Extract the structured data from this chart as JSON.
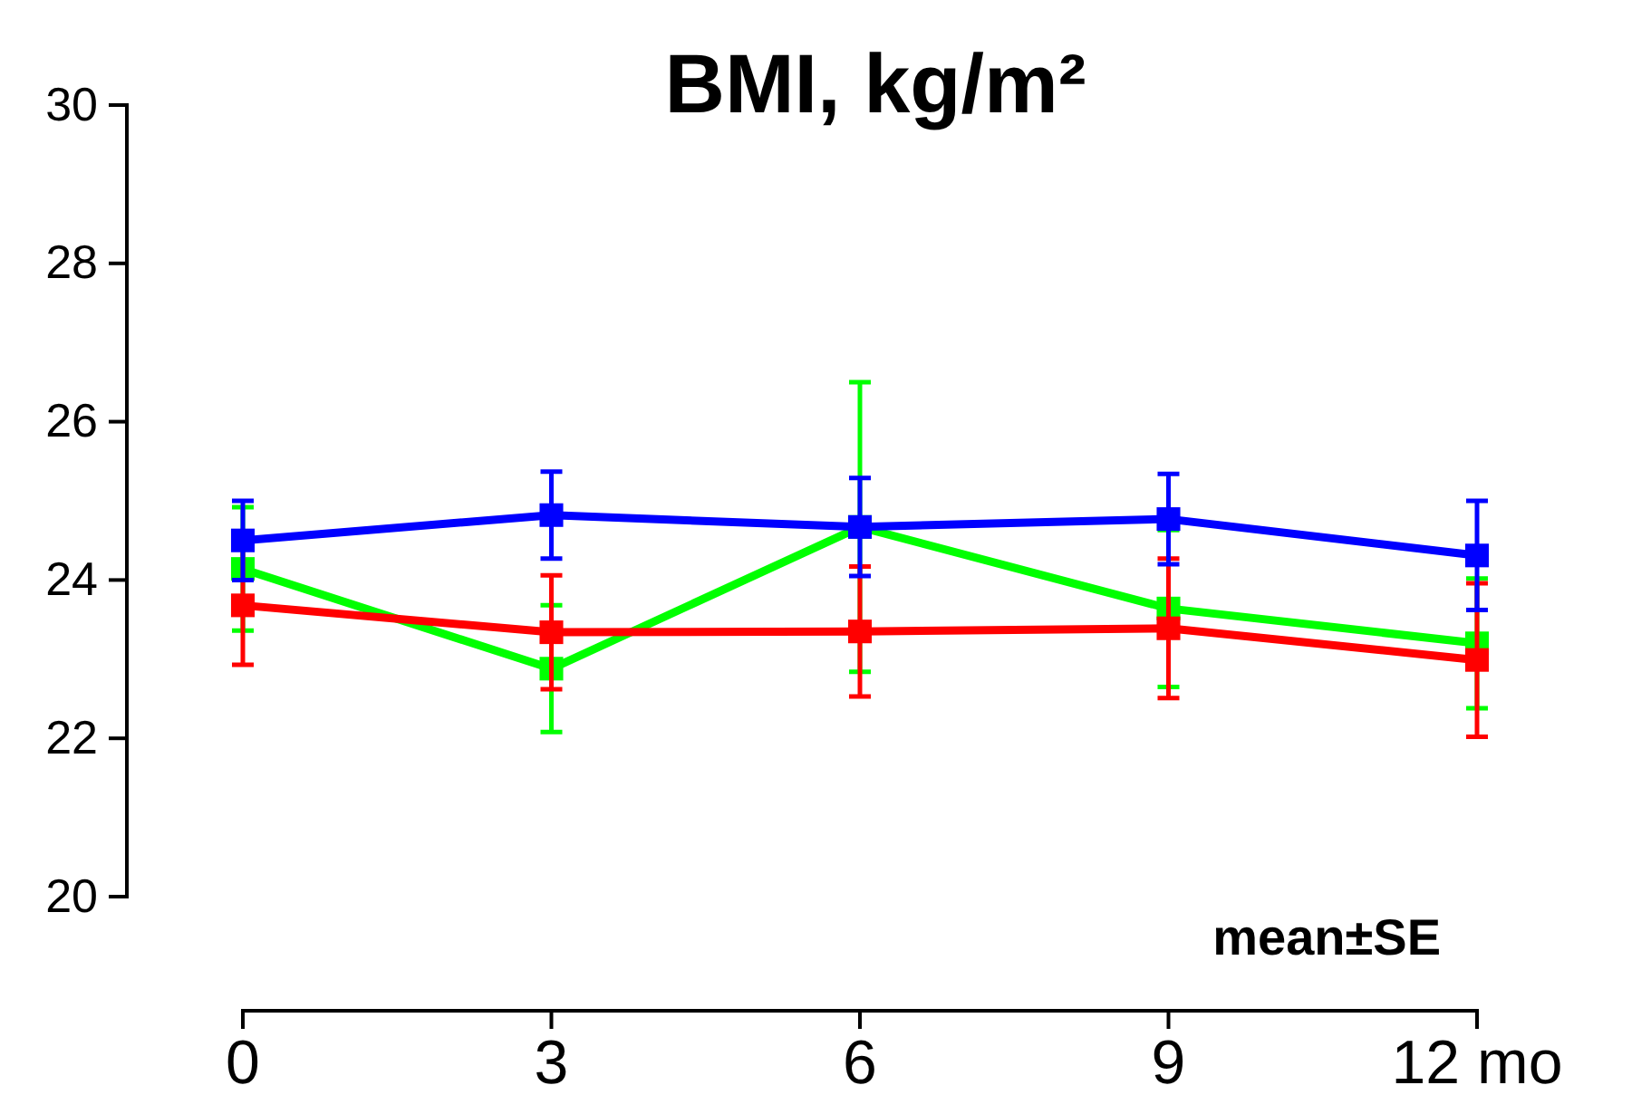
{
  "chart_data": {
    "type": "line",
    "title": "BMI, kg/m²",
    "x": [
      0,
      3,
      6,
      9,
      12
    ],
    "xlim": [
      0,
      12
    ],
    "xticks": [
      0,
      3,
      6,
      9,
      {
        "value": 12,
        "label": "12 mo"
      }
    ],
    "ylim": [
      20,
      30
    ],
    "yticks": [
      20,
      22,
      24,
      26,
      28,
      30
    ],
    "marker": "square",
    "grid": false,
    "annotations": [
      "mean±SE"
    ],
    "series": [
      {
        "color": "#00ff00",
        "values": [
          24.14,
          22.88,
          24.67,
          23.64,
          23.2
        ],
        "errors": [
          0.78,
          0.8,
          1.83,
          0.99,
          0.82
        ]
      },
      {
        "color": "#ff0000",
        "values": [
          23.68,
          23.34,
          23.35,
          23.39,
          22.99
        ],
        "errors": [
          0.75,
          0.72,
          0.82,
          0.88,
          0.97
        ]
      },
      {
        "color": "#0000ff",
        "values": [
          24.5,
          24.82,
          24.67,
          24.77,
          24.31
        ],
        "errors": [
          0.5,
          0.55,
          0.62,
          0.57,
          0.69
        ]
      }
    ]
  }
}
